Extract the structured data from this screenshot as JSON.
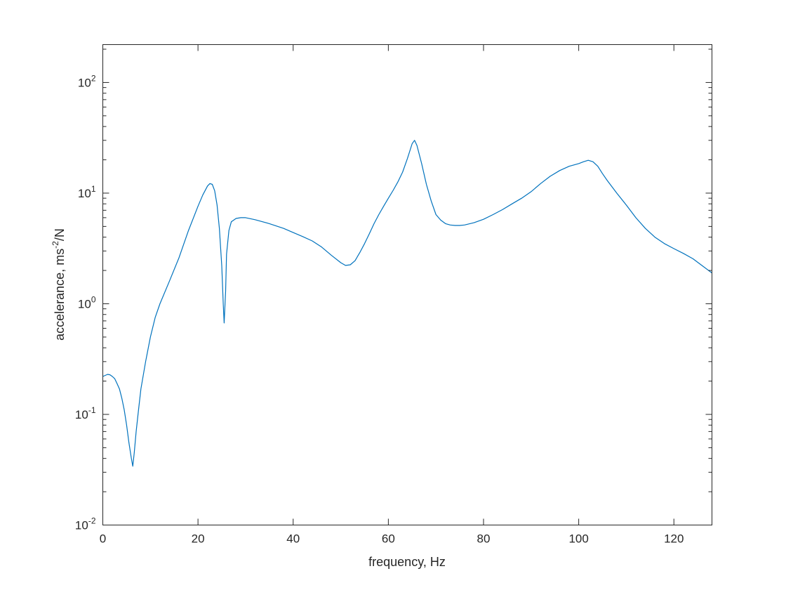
{
  "chart_data": {
    "type": "line",
    "title": "",
    "xlabel": "frequency, Hz",
    "ylabel": "accelerance, ms",
    "ylabel_superscript": "-2",
    "ylabel_suffix": "/N",
    "xlim": [
      0,
      128
    ],
    "ylim": [
      0.01,
      220
    ],
    "yscale": "log",
    "grid": false,
    "x_ticks": [
      0,
      20,
      40,
      60,
      80,
      100,
      120
    ],
    "x_tick_labels": [
      "0",
      "20",
      "40",
      "60",
      "80",
      "100",
      "120"
    ],
    "y_ticks": [
      0.01,
      0.1,
      1,
      10,
      100
    ],
    "y_tick_labels": [
      {
        "base": "10",
        "exp": "-2"
      },
      {
        "base": "10",
        "exp": "-1"
      },
      {
        "base": "10",
        "exp": "0"
      },
      {
        "base": "10",
        "exp": "1"
      },
      {
        "base": "10",
        "exp": "2"
      }
    ],
    "series": [
      {
        "color": "#0072BD",
        "x": [
          0,
          0.5,
          1,
          1.5,
          2,
          2.5,
          3,
          3.5,
          4,
          4.5,
          5,
          5.5,
          6,
          6.3,
          6.6,
          7,
          7.5,
          8,
          9,
          10,
          11,
          12,
          14,
          16,
          18,
          20,
          21,
          22,
          22.5,
          23,
          23.5,
          24,
          24.5,
          25,
          25.3,
          25.5,
          25.8,
          26,
          26.5,
          27,
          28,
          29,
          30,
          32,
          35,
          38,
          40,
          42,
          44,
          46,
          48,
          50,
          51,
          52,
          53,
          54,
          55,
          56,
          57,
          58,
          59,
          60,
          61,
          62,
          63,
          64,
          65,
          65.5,
          66,
          67,
          68,
          69,
          70,
          71,
          72,
          73,
          74,
          75,
          76,
          78,
          80,
          82,
          84,
          86,
          88,
          90,
          92,
          94,
          96,
          98,
          100,
          101,
          102,
          103,
          104,
          105,
          106,
          108,
          110,
          112,
          114,
          116,
          118,
          120,
          122,
          124,
          126,
          128
        ],
        "y": [
          0.22,
          0.225,
          0.23,
          0.228,
          0.22,
          0.21,
          0.19,
          0.17,
          0.14,
          0.11,
          0.08,
          0.055,
          0.04,
          0.034,
          0.045,
          0.07,
          0.11,
          0.17,
          0.3,
          0.5,
          0.75,
          1.0,
          1.6,
          2.6,
          4.6,
          7.6,
          9.6,
          11.6,
          12.2,
          12.0,
          10.5,
          7.8,
          4.8,
          2.2,
          1.0,
          0.67,
          1.3,
          2.8,
          4.6,
          5.5,
          5.9,
          6.0,
          6.0,
          5.75,
          5.3,
          4.8,
          4.4,
          4.05,
          3.7,
          3.25,
          2.75,
          2.35,
          2.22,
          2.25,
          2.45,
          2.9,
          3.5,
          4.3,
          5.3,
          6.4,
          7.6,
          9.0,
          10.6,
          12.6,
          15.5,
          20.5,
          28.0,
          30.0,
          27.0,
          18.5,
          12.0,
          8.5,
          6.4,
          5.7,
          5.3,
          5.15,
          5.1,
          5.1,
          5.15,
          5.4,
          5.8,
          6.4,
          7.1,
          8.0,
          9.0,
          10.3,
          12.2,
          14.2,
          16.0,
          17.5,
          18.5,
          19.2,
          19.8,
          19.2,
          17.5,
          15.0,
          13.0,
          10.0,
          7.8,
          6.0,
          4.8,
          4.0,
          3.5,
          3.15,
          2.85,
          2.55,
          2.2,
          1.9
        ]
      }
    ]
  }
}
